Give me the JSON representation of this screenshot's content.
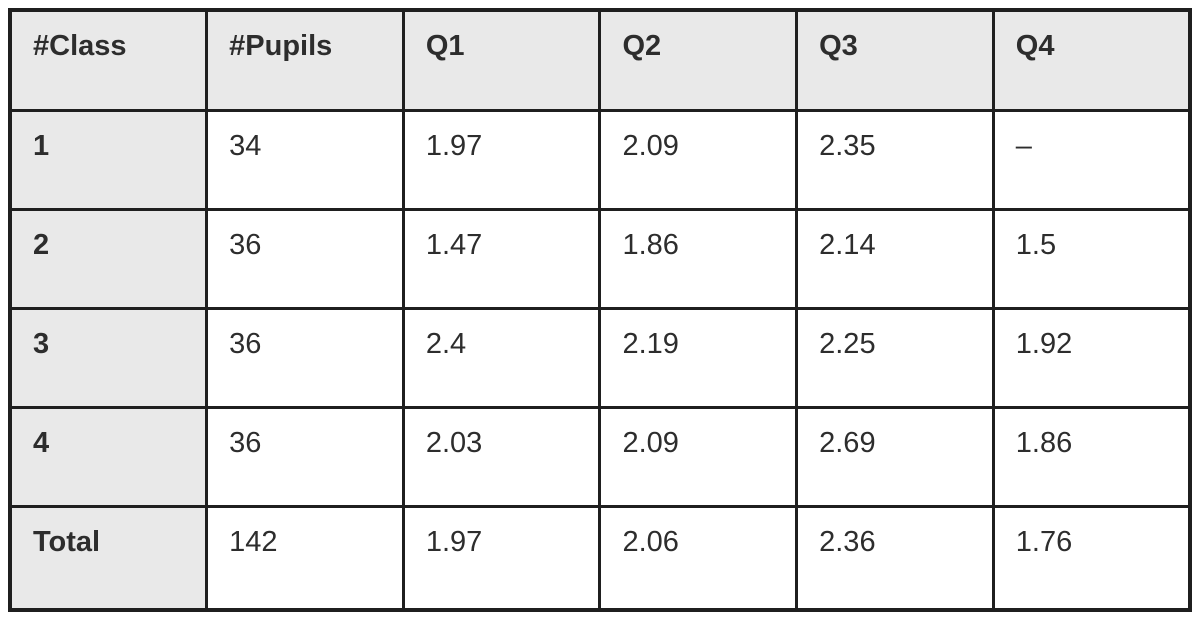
{
  "chart_data": {
    "type": "table",
    "title": "",
    "columns": [
      "#Class",
      "#Pupils",
      "Q1",
      "Q2",
      "Q3",
      "Q4"
    ],
    "rows": [
      [
        "1",
        "34",
        "1.97",
        "2.09",
        "2.35",
        "–"
      ],
      [
        "2",
        "36",
        "1.47",
        "1.86",
        "2.14",
        "1.5"
      ],
      [
        "3",
        "36",
        "2.4",
        "2.19",
        "2.25",
        "1.92"
      ],
      [
        "4",
        "36",
        "2.03",
        "2.09",
        "2.69",
        "1.86"
      ],
      [
        "Total",
        "142",
        "1.97",
        "2.06",
        "2.36",
        "1.76"
      ]
    ],
    "notes": "En dash in row 1 / Q4 indicates missing value"
  },
  "table": {
    "headers": [
      "#Class",
      "#Pupils",
      "Q1",
      "Q2",
      "Q3",
      "Q4"
    ],
    "rows": [
      [
        "1",
        "34",
        "1.97",
        "2.09",
        "2.35",
        "–"
      ],
      [
        "2",
        "36",
        "1.47",
        "1.86",
        "2.14",
        "1.5"
      ],
      [
        "3",
        "36",
        "2.4",
        "2.19",
        "2.25",
        "1.92"
      ],
      [
        "4",
        "36",
        "2.03",
        "2.09",
        "2.69",
        "1.86"
      ],
      [
        "Total",
        "142",
        "1.97",
        "2.06",
        "2.36",
        "1.76"
      ]
    ]
  },
  "colors": {
    "border": "#1f1f1f",
    "header_background": "#e9e9e9",
    "text": "#2d2d2d",
    "cell_background": "#ffffff"
  }
}
